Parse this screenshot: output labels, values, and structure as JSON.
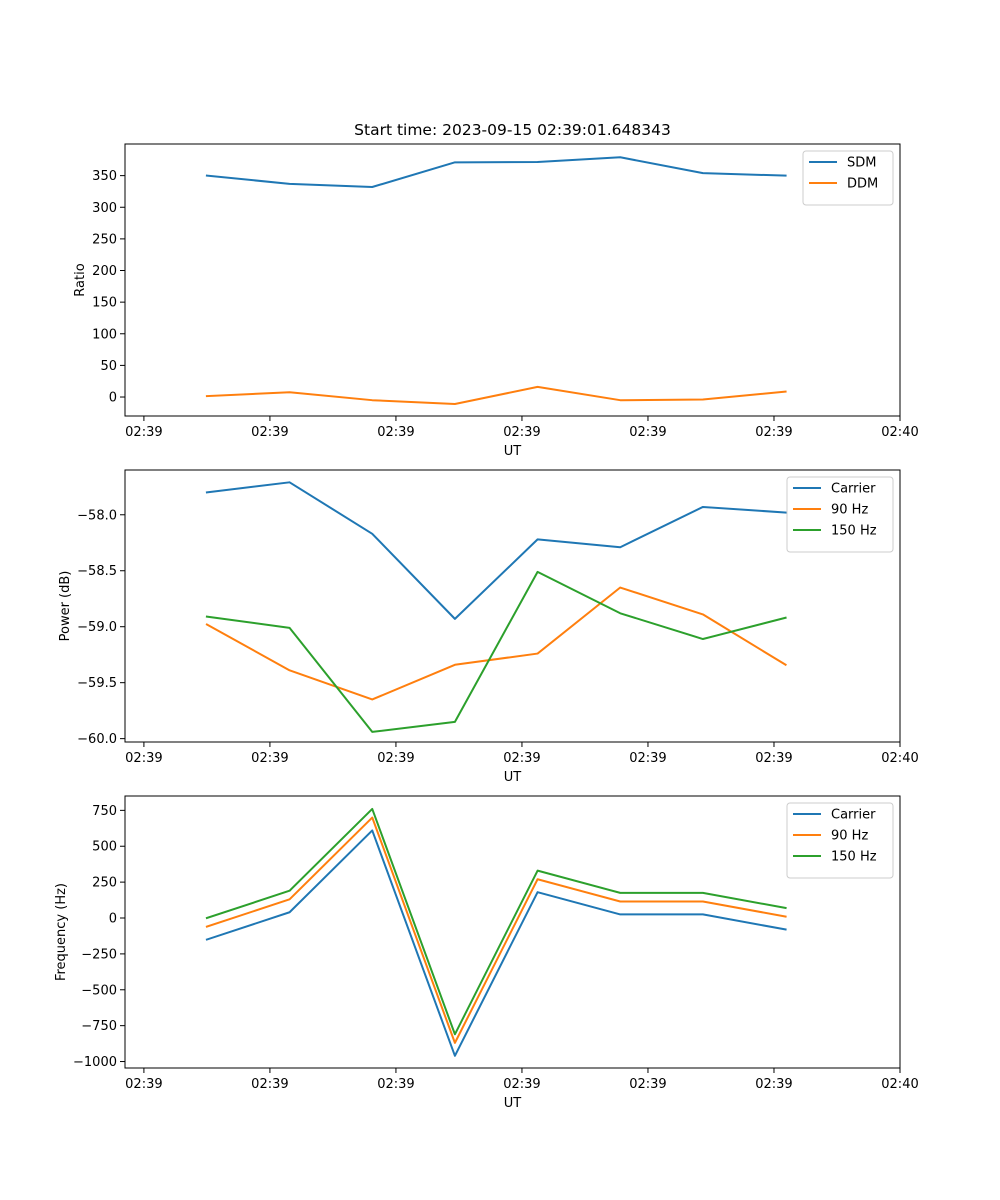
{
  "chart_data": [
    {
      "type": "line",
      "title": "Start time: 2023-09-15 02:39:01.648343",
      "xlabel": "UT",
      "ylabel": "Ratio",
      "x": [
        0.5,
        1.156,
        1.812,
        2.468,
        3.124,
        3.78,
        4.436,
        5.092
      ],
      "xlim": [
        -0.15,
        6.0
      ],
      "x_ticks": [
        0,
        1,
        2,
        3,
        4,
        5,
        6
      ],
      "x_tick_labels": [
        "02:39",
        "02:39",
        "02:39",
        "02:39",
        "02:39",
        "02:39",
        "02:40"
      ],
      "ylim": [
        -30,
        400
      ],
      "y_ticks": [
        0,
        50,
        100,
        150,
        200,
        250,
        300,
        350
      ],
      "y_tick_labels": [
        "0",
        "50",
        "100",
        "150",
        "200",
        "250",
        "300",
        "350"
      ],
      "legend_position": "top-right",
      "series": [
        {
          "name": "SDM",
          "color": "#1f77b4",
          "values": [
            350,
            337,
            332,
            371,
            371.5,
            379,
            354,
            350
          ]
        },
        {
          "name": "DDM",
          "color": "#ff7f0e",
          "values": [
            1.5,
            7.5,
            -5,
            -11,
            16,
            -5,
            -4,
            8.5
          ]
        }
      ]
    },
    {
      "type": "line",
      "title": "",
      "xlabel": "UT",
      "ylabel": "Power (dB)",
      "x": [
        0.5,
        1.156,
        1.812,
        2.468,
        3.124,
        3.78,
        4.436,
        5.092
      ],
      "xlim": [
        -0.15,
        6.0
      ],
      "x_ticks": [
        0,
        1,
        2,
        3,
        4,
        5,
        6
      ],
      "x_tick_labels": [
        "02:39",
        "02:39",
        "02:39",
        "02:39",
        "02:39",
        "02:39",
        "02:40"
      ],
      "ylim": [
        -60.03,
        -57.6
      ],
      "y_ticks": [
        -60.0,
        -59.5,
        -59.0,
        -58.5,
        -58.0
      ],
      "y_tick_labels": [
        "−60.0",
        "−59.5",
        "−59.0",
        "−58.5",
        "−58.0"
      ],
      "legend_position": "top-right",
      "series": [
        {
          "name": "Carrier",
          "color": "#1f77b4",
          "values": [
            -57.8,
            -57.71,
            -58.17,
            -58.93,
            -58.22,
            -58.29,
            -57.93,
            -57.98
          ]
        },
        {
          "name": "90 Hz",
          "color": "#ff7f0e",
          "values": [
            -58.98,
            -59.39,
            -59.65,
            -59.34,
            -59.24,
            -58.65,
            -58.89,
            -59.34
          ]
        },
        {
          "name": "150 Hz",
          "color": "#2ca02c",
          "values": [
            -58.91,
            -59.01,
            -59.94,
            -59.85,
            -58.51,
            -58.88,
            -59.11,
            -58.92
          ]
        }
      ]
    },
    {
      "type": "line",
      "title": "",
      "xlabel": "UT",
      "ylabel": "Frequency (Hz)",
      "x": [
        0.5,
        1.156,
        1.812,
        2.468,
        3.124,
        3.78,
        4.436,
        5.092
      ],
      "xlim": [
        -0.15,
        6.0
      ],
      "x_ticks": [
        0,
        1,
        2,
        3,
        4,
        5,
        6
      ],
      "x_tick_labels": [
        "02:39",
        "02:39",
        "02:39",
        "02:39",
        "02:39",
        "02:39",
        "02:40"
      ],
      "ylim": [
        -1045,
        850
      ],
      "y_ticks": [
        -1000,
        -750,
        -500,
        -250,
        0,
        250,
        500,
        750
      ],
      "y_tick_labels": [
        "−1000",
        "−750",
        "−500",
        "−250",
        "0",
        "250",
        "500",
        "750"
      ],
      "legend_position": "top-right",
      "series": [
        {
          "name": "Carrier",
          "color": "#1f77b4",
          "values": [
            -150,
            40,
            610,
            -960,
            180,
            25,
            25,
            -80
          ]
        },
        {
          "name": "90 Hz",
          "color": "#ff7f0e",
          "values": [
            -60,
            130,
            700,
            -870,
            270,
            115,
            115,
            10
          ]
        },
        {
          "name": "150 Hz",
          "color": "#2ca02c",
          "values": [
            0,
            190,
            760,
            -810,
            330,
            175,
            175,
            70
          ]
        }
      ]
    }
  ]
}
